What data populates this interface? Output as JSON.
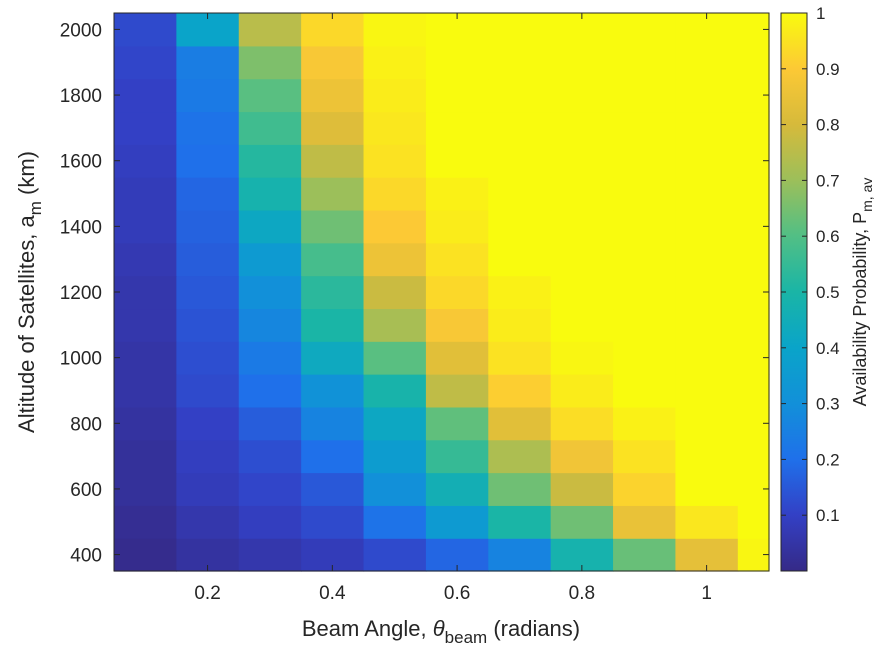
{
  "chart_data": {
    "type": "heatmap",
    "xlabel": {
      "main": "Beam Angle, ",
      "symbol": "θ",
      "sub": "beam",
      "tail": " (radians)"
    },
    "ylabel": {
      "main": "Altitude of Satellites, a",
      "sub": "m",
      "tail": " (km)"
    },
    "colorbar_label": {
      "main": "Availability Probability, P",
      "sub": "m, av"
    },
    "x_ticks": [
      "0.2",
      "0.4",
      "0.6",
      "0.8",
      "1"
    ],
    "x_tick_values": [
      0.2,
      0.4,
      0.6,
      0.8,
      1.0
    ],
    "y_ticks": [
      "400",
      "600",
      "800",
      "1000",
      "1200",
      "1400",
      "1600",
      "1800",
      "2000"
    ],
    "y_tick_values": [
      400,
      600,
      800,
      1000,
      1200,
      1400,
      1600,
      1800,
      2000
    ],
    "xlim": [
      0.05,
      1.1
    ],
    "ylim": [
      350,
      2050
    ],
    "x": [
      0.1,
      0.2,
      0.3,
      0.4,
      0.5,
      0.6,
      0.7,
      0.8,
      0.9,
      1.0,
      1.1
    ],
    "y": [
      400,
      500,
      600,
      700,
      800,
      900,
      1000,
      1100,
      1200,
      1300,
      1400,
      1500,
      1600,
      1700,
      1800,
      1900,
      2000
    ],
    "z": [
      [
        0.01,
        0.04,
        0.06,
        0.08,
        0.12,
        0.18,
        0.26,
        0.48,
        0.63,
        0.84,
        0.99
      ],
      [
        0.02,
        0.06,
        0.09,
        0.12,
        0.21,
        0.35,
        0.5,
        0.64,
        0.85,
        0.96,
        1.0
      ],
      [
        0.03,
        0.08,
        0.11,
        0.15,
        0.3,
        0.46,
        0.64,
        0.78,
        0.92,
        1.0,
        1.0
      ],
      [
        0.03,
        0.09,
        0.13,
        0.2,
        0.36,
        0.55,
        0.73,
        0.87,
        0.95,
        1.0,
        1.0
      ],
      [
        0.04,
        0.1,
        0.16,
        0.26,
        0.42,
        0.62,
        0.83,
        0.94,
        0.98,
        1.0,
        1.0
      ],
      [
        0.05,
        0.12,
        0.2,
        0.31,
        0.49,
        0.76,
        0.91,
        0.97,
        1.0,
        1.0,
        1.0
      ],
      [
        0.05,
        0.13,
        0.23,
        0.43,
        0.61,
        0.83,
        0.95,
        0.99,
        1.0,
        1.0,
        1.0
      ],
      [
        0.06,
        0.14,
        0.27,
        0.5,
        0.72,
        0.89,
        0.97,
        1.0,
        1.0,
        1.0,
        1.0
      ],
      [
        0.06,
        0.15,
        0.3,
        0.53,
        0.78,
        0.93,
        0.98,
        1.0,
        1.0,
        1.0,
        1.0
      ],
      [
        0.07,
        0.16,
        0.35,
        0.58,
        0.86,
        0.95,
        1.0,
        1.0,
        1.0,
        1.0,
        1.0
      ],
      [
        0.08,
        0.17,
        0.42,
        0.64,
        0.9,
        0.97,
        1.0,
        1.0,
        1.0,
        1.0,
        1.0
      ],
      [
        0.08,
        0.18,
        0.48,
        0.7,
        0.93,
        0.98,
        1.0,
        1.0,
        1.0,
        1.0,
        1.0
      ],
      [
        0.09,
        0.2,
        0.52,
        0.76,
        0.95,
        1.0,
        1.0,
        1.0,
        1.0,
        1.0,
        1.0
      ],
      [
        0.1,
        0.21,
        0.57,
        0.82,
        0.96,
        1.0,
        1.0,
        1.0,
        1.0,
        1.0,
        1.0
      ],
      [
        0.1,
        0.23,
        0.61,
        0.86,
        0.97,
        1.0,
        1.0,
        1.0,
        1.0,
        1.0,
        1.0
      ],
      [
        0.11,
        0.24,
        0.66,
        0.89,
        0.98,
        1.0,
        1.0,
        1.0,
        1.0,
        1.0,
        1.0
      ],
      [
        0.12,
        0.4,
        0.75,
        0.93,
        0.99,
        1.0,
        1.0,
        1.0,
        1.0,
        1.0,
        1.0
      ]
    ],
    "colorbar": {
      "range": [
        0.0,
        1.0
      ],
      "ticks": [
        "0.1",
        "0.2",
        "0.3",
        "0.4",
        "0.5",
        "0.6",
        "0.7",
        "0.8",
        "0.9",
        "1"
      ],
      "tick_values": [
        0.1,
        0.2,
        0.3,
        0.4,
        0.5,
        0.6,
        0.7,
        0.8,
        0.9,
        1.0
      ],
      "colormap": "parula"
    },
    "grid": false
  }
}
